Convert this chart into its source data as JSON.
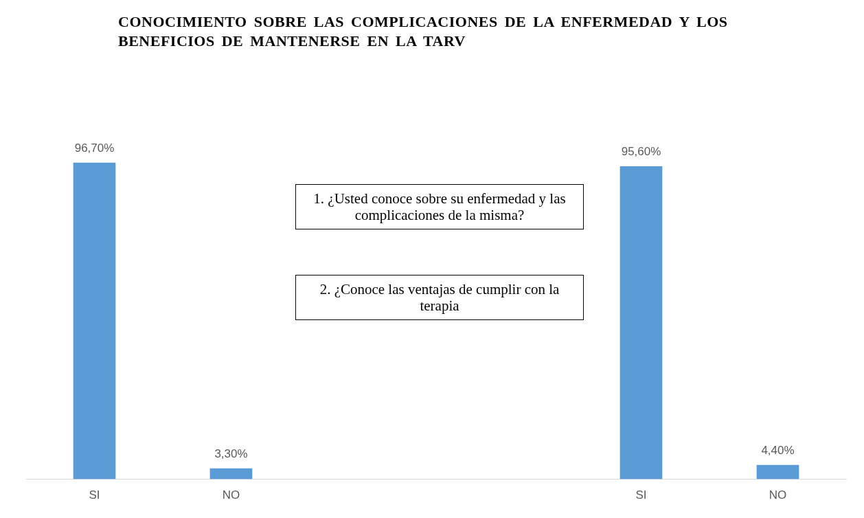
{
  "chart_data": {
    "type": "bar",
    "title": "CONOCIMIENTO SOBRE LAS COMPLICACIONES DE LA ENFERMEDAD Y LOS BENEFICIOS DE MANTENERSE EN LA TARV",
    "categories": [
      "SI",
      "NO",
      null,
      null,
      "SI",
      "NO"
    ],
    "values": [
      96.7,
      3.3,
      null,
      null,
      95.6,
      4.4
    ],
    "value_labels": [
      "96,70%",
      "3,30%",
      null,
      null,
      "95,60%",
      "4,40%"
    ],
    "color": "#5b9bd5",
    "tick_labels": "x",
    "grid": false,
    "legend": false,
    "annotations": [
      "1. ¿Usted conoce sobre su enfermedad y las complicaciones de la misma?",
      "2. ¿Conoce las ventajas de cumplir con la terapia"
    ]
  }
}
